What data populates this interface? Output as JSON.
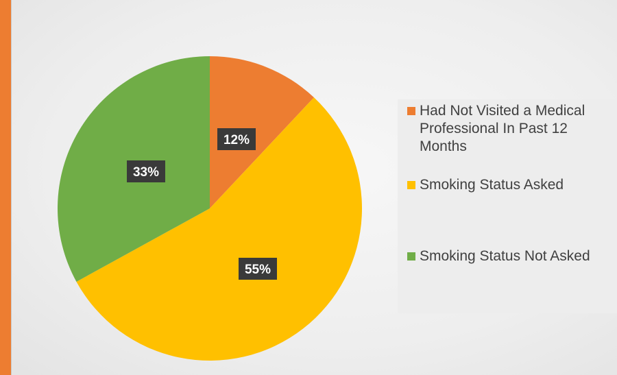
{
  "colors": {
    "accent": "#ed7d31",
    "label_box": "#3a3a3a"
  },
  "chart_data": {
    "type": "pie",
    "title": "",
    "categories": [
      "Had Not Visited a Medical Professional In Past 12 Months",
      "Smoking Status Asked",
      "Smoking Status Not Asked"
    ],
    "values": [
      12,
      55,
      33
    ],
    "labels": [
      "12%",
      "55%",
      "33%"
    ],
    "colors": [
      "#ed7d31",
      "#ffc000",
      "#70ad47"
    ],
    "start_angle_deg": 0,
    "direction": "clockwise",
    "legend_position": "right"
  }
}
